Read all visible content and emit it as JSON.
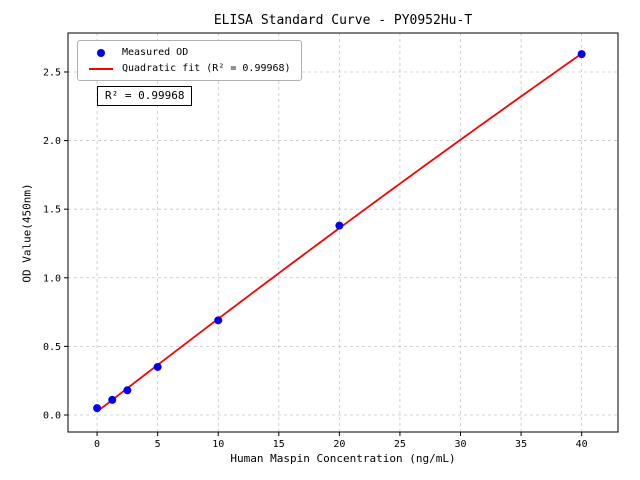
{
  "chart_data": {
    "type": "scatter",
    "title": "ELISA Standard Curve - PY0952Hu-T",
    "xlabel": "Human Maspin Concentration (ng/mL)",
    "ylabel": "OD Value(450nm)",
    "xlim": [
      -2.4,
      43.0
    ],
    "ylim": [
      -0.124,
      2.784
    ],
    "xticks": [
      0,
      5,
      10,
      15,
      20,
      25,
      30,
      35,
      40
    ],
    "yticks": [
      0.0,
      0.5,
      1.0,
      1.5,
      2.0,
      2.5
    ],
    "grid": true,
    "legend_position": "upper left",
    "annotation": "R² = 0.99968",
    "series": [
      {
        "name": "Measured OD",
        "type": "scatter",
        "color": "#0000ee",
        "x": [
          0,
          1.25,
          2.5,
          5,
          10,
          20,
          40
        ],
        "y": [
          0.05,
          0.11,
          0.18,
          0.35,
          0.69,
          1.38,
          2.63
        ]
      },
      {
        "name": "Quadratic fit (R² = 0.99968)",
        "type": "line",
        "color": "#ff0000",
        "fit": "quadratic",
        "x_range": [
          0,
          40
        ]
      }
    ]
  }
}
